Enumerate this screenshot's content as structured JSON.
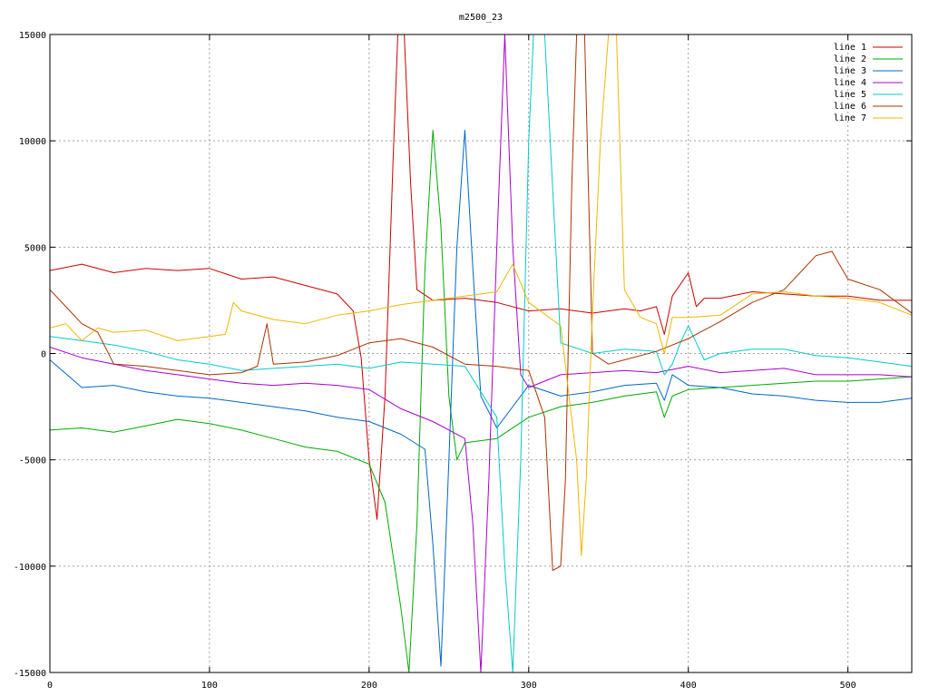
{
  "chart_data": {
    "type": "line",
    "title": "m2500_23",
    "xlabel": "",
    "ylabel": "",
    "xlim": [
      0,
      540
    ],
    "ylim": [
      -15000,
      15000
    ],
    "x_ticks": [
      0,
      100,
      200,
      300,
      400,
      500
    ],
    "y_ticks": [
      -15000,
      -10000,
      -5000,
      0,
      5000,
      10000,
      15000
    ],
    "grid": true,
    "legend_position": "top-right",
    "series": [
      {
        "name": "line 1",
        "color": "#cc0000",
        "x": [
          0,
          20,
          40,
          60,
          80,
          100,
          120,
          140,
          160,
          180,
          190,
          195,
          200,
          205,
          210,
          215,
          218,
          222,
          226,
          230,
          240,
          260,
          280,
          300,
          320,
          340,
          360,
          370,
          380,
          385,
          390,
          400,
          405,
          410,
          420,
          440,
          460,
          480,
          500,
          520,
          540
        ],
        "y": [
          3900,
          4200,
          3800,
          4000,
          3900,
          4000,
          3500,
          3600,
          3200,
          2800,
          2000,
          -200,
          -5000,
          -7800,
          -2000,
          9000,
          15000,
          15000,
          8000,
          3000,
          2500,
          2600,
          2400,
          2000,
          2100,
          1900,
          2100,
          2000,
          2200,
          900,
          2700,
          3800,
          2200,
          2600,
          2600,
          2900,
          2800,
          2700,
          2700,
          2500,
          2500
        ]
      },
      {
        "name": "line 2",
        "color": "#00aa00",
        "x": [
          0,
          20,
          40,
          60,
          80,
          100,
          120,
          140,
          160,
          180,
          200,
          210,
          220,
          225,
          230,
          235,
          240,
          245,
          250,
          255,
          260,
          280,
          300,
          320,
          340,
          360,
          380,
          385,
          390,
          400,
          420,
          440,
          460,
          480,
          500,
          520,
          540
        ],
        "y": [
          -3600,
          -3500,
          -3700,
          -3400,
          -3100,
          -3300,
          -3600,
          -4000,
          -4400,
          -4600,
          -5200,
          -7000,
          -12000,
          -15000,
          -8000,
          4000,
          10500,
          6000,
          -2000,
          -5000,
          -4200,
          -4000,
          -3000,
          -2500,
          -2300,
          -2000,
          -1800,
          -3000,
          -2000,
          -1700,
          -1600,
          -1500,
          -1400,
          -1300,
          -1300,
          -1200,
          -1100
        ]
      },
      {
        "name": "line 3",
        "color": "#0066cc",
        "x": [
          0,
          20,
          40,
          60,
          80,
          100,
          120,
          140,
          160,
          180,
          200,
          220,
          235,
          240,
          245,
          250,
          255,
          260,
          265,
          270,
          280,
          300,
          320,
          340,
          360,
          380,
          385,
          390,
          400,
          420,
          440,
          460,
          480,
          500,
          520,
          540
        ],
        "y": [
          -300,
          -1600,
          -1500,
          -1800,
          -2000,
          -2100,
          -2300,
          -2500,
          -2700,
          -3000,
          -3200,
          -3800,
          -4500,
          -9000,
          -14700,
          -5000,
          5000,
          10500,
          4000,
          -2000,
          -3500,
          -1500,
          -2000,
          -1800,
          -1500,
          -1400,
          -2200,
          -1000,
          -1500,
          -1600,
          -1900,
          -2000,
          -2200,
          -2300,
          -2300,
          -2100
        ]
      },
      {
        "name": "line 4",
        "color": "#aa00cc",
        "x": [
          0,
          20,
          40,
          60,
          80,
          100,
          120,
          140,
          160,
          180,
          200,
          220,
          240,
          260,
          265,
          270,
          275,
          280,
          285,
          290,
          295,
          300,
          320,
          340,
          360,
          380,
          400,
          420,
          440,
          460,
          480,
          500,
          520,
          540
        ],
        "y": [
          300,
          -200,
          -500,
          -800,
          -1000,
          -1200,
          -1400,
          -1500,
          -1400,
          -1500,
          -1700,
          -2600,
          -3200,
          -4000,
          -8000,
          -15000,
          -6000,
          5000,
          15000,
          5000,
          -1000,
          -1600,
          -1000,
          -900,
          -800,
          -900,
          -600,
          -900,
          -800,
          -700,
          -1000,
          -1000,
          -1000,
          -1100
        ]
      },
      {
        "name": "line 5",
        "color": "#00cccc",
        "x": [
          0,
          20,
          40,
          60,
          80,
          100,
          120,
          140,
          160,
          180,
          200,
          220,
          240,
          260,
          280,
          285,
          290,
          295,
          300,
          303,
          306,
          310,
          320,
          340,
          360,
          380,
          385,
          390,
          395,
          400,
          410,
          420,
          440,
          460,
          480,
          500,
          520,
          540
        ],
        "y": [
          800,
          600,
          400,
          100,
          -300,
          -500,
          -800,
          -700,
          -600,
          -500,
          -700,
          -400,
          -500,
          -600,
          -3000,
          -10000,
          -15000,
          -5000,
          10000,
          15000,
          15000,
          15000,
          500,
          0,
          200,
          100,
          -1000,
          -500,
          500,
          1300,
          -300,
          0,
          200,
          200,
          -100,
          -200,
          -400,
          -600
        ]
      },
      {
        "name": "line 6",
        "color": "#aa3300",
        "x": [
          0,
          10,
          20,
          30,
          40,
          60,
          80,
          100,
          120,
          130,
          136,
          140,
          160,
          180,
          200,
          220,
          240,
          260,
          280,
          300,
          310,
          315,
          320,
          323,
          327,
          330,
          335,
          340,
          350,
          360,
          380,
          400,
          420,
          440,
          460,
          480,
          490,
          500,
          520,
          540
        ],
        "y": [
          3000,
          2200,
          1400,
          1000,
          -500,
          -600,
          -800,
          -1000,
          -900,
          -600,
          1400,
          -500,
          -400,
          -100,
          500,
          700,
          300,
          -500,
          -600,
          -800,
          -3000,
          -10200,
          -10000,
          -6000,
          8000,
          15000,
          15000,
          0,
          -500,
          -300,
          100,
          700,
          1500,
          2400,
          3000,
          4600,
          4800,
          3500,
          3000,
          1900
        ]
      },
      {
        "name": "line 7",
        "color": "#eeb800",
        "x": [
          0,
          10,
          20,
          30,
          40,
          60,
          80,
          100,
          110,
          115,
          120,
          140,
          160,
          180,
          200,
          220,
          240,
          260,
          280,
          290,
          300,
          320,
          330,
          333,
          336,
          340,
          345,
          350,
          355,
          360,
          370,
          380,
          385,
          390,
          400,
          420,
          440,
          460,
          480,
          500,
          520,
          540
        ],
        "y": [
          1200,
          1400,
          600,
          1200,
          1000,
          1100,
          600,
          800,
          900,
          2400,
          2000,
          1600,
          1400,
          1800,
          2000,
          2300,
          2500,
          2700,
          2900,
          4200,
          2400,
          1300,
          -5000,
          -9500,
          -6000,
          2000,
          10000,
          15000,
          15000,
          3000,
          1700,
          1400,
          0,
          1700,
          1700,
          1800,
          2800,
          2900,
          2700,
          2600,
          2400,
          1800
        ]
      }
    ]
  }
}
